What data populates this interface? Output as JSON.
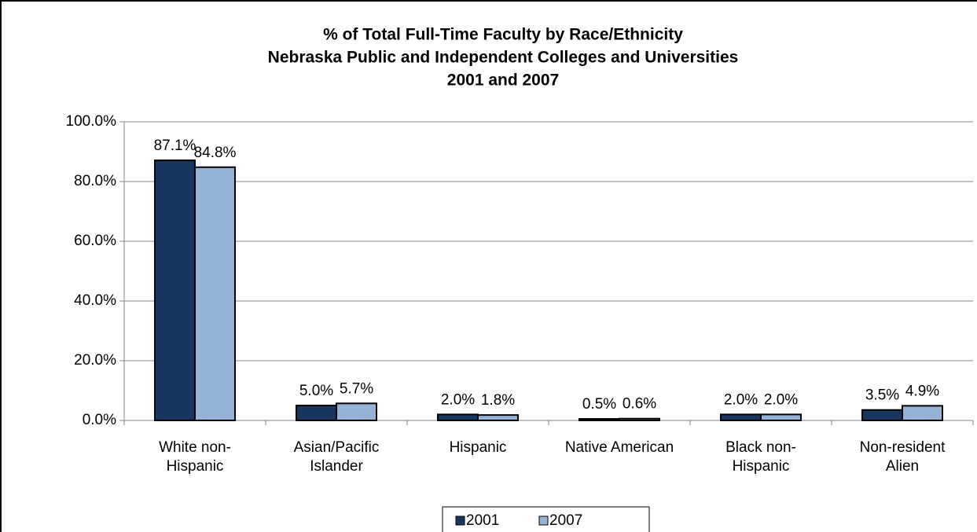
{
  "chart_data": {
    "type": "bar",
    "title": "% of Total Full-Time Faculty by Race/Ethnicity",
    "subtitle": [
      "Nebraska Public and Independent Colleges and Universities",
      "2001 and 2007"
    ],
    "categories": [
      "White non-\nHispanic",
      "Asian/Pacific\nIslander",
      "Hispanic",
      "Native American",
      "Black non-\nHispanic",
      "Non-resident\nAlien"
    ],
    "series": [
      {
        "name": "2001",
        "color": "#17375e",
        "values": [
          87.1,
          5.0,
          2.0,
          0.5,
          2.0,
          3.5
        ],
        "value_labels": [
          "87.1%",
          "5.0%",
          "2.0%",
          "0.5%",
          "2.0%",
          "3.5%"
        ]
      },
      {
        "name": "2007",
        "color": "#95b3d7",
        "values": [
          84.8,
          5.7,
          1.8,
          0.6,
          2.0,
          4.9
        ],
        "value_labels": [
          "84.8%",
          "5.7%",
          "1.8%",
          "0.6%",
          "2.0%",
          "4.9%"
        ]
      }
    ],
    "ylim": [
      0,
      100
    ],
    "yticks": [
      {
        "value": 0,
        "label": "0.0%"
      },
      {
        "value": 20,
        "label": "20.0%"
      },
      {
        "value": 40,
        "label": "40.0%"
      },
      {
        "value": 60,
        "label": "60.0%"
      },
      {
        "value": 80,
        "label": "80.0%"
      },
      {
        "value": 100,
        "label": "100.0%"
      }
    ],
    "grid": true,
    "legend": "bottom"
  }
}
